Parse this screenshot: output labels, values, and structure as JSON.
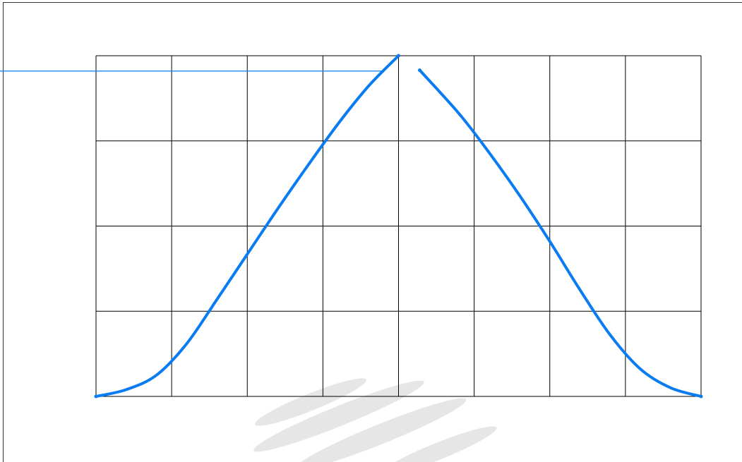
{
  "chart_data": {
    "type": "line",
    "title": "",
    "xlabel": "",
    "ylabel": "",
    "x_divisions": 8,
    "y_divisions": 4,
    "xlim": [
      0,
      8
    ],
    "ylim": [
      0,
      4
    ],
    "grid": true,
    "series": [
      {
        "color": "#0a7cf2",
        "segments": [
          [
            [
              0,
              0
            ],
            [
              0.4,
              0.08
            ],
            [
              0.8,
              0.25
            ],
            [
              1.2,
              0.62
            ],
            [
              1.6,
              1.14
            ],
            [
              2.0,
              1.67
            ],
            [
              2.4,
              2.2
            ],
            [
              2.8,
              2.71
            ],
            [
              3.2,
              3.2
            ],
            [
              3.6,
              3.64
            ],
            [
              4.0,
              4.0
            ]
          ],
          [
            [
              4.28,
              3.83
            ],
            [
              4.8,
              3.32
            ],
            [
              5.2,
              2.86
            ],
            [
              5.6,
              2.36
            ],
            [
              6.0,
              1.82
            ],
            [
              6.4,
              1.25
            ],
            [
              6.8,
              0.72
            ],
            [
              7.2,
              0.32
            ],
            [
              7.6,
              0.1
            ],
            [
              8.0,
              0.0
            ]
          ]
        ]
      }
    ],
    "reference_line": {
      "y": 3.82,
      "x_end": 3.8,
      "color": "#0a7cf2"
    }
  }
}
